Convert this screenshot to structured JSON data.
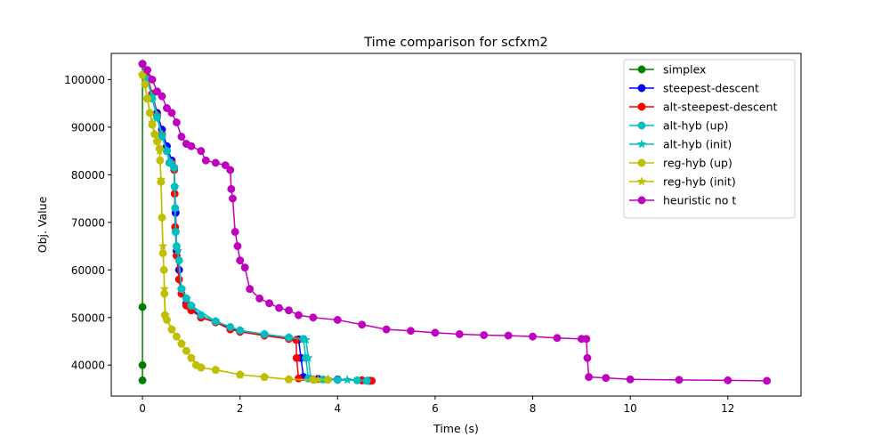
{
  "chart_data": {
    "type": "line",
    "title": "Time comparison for scfxm2",
    "xlabel": "Time (s)",
    "ylabel": "Obj. Value",
    "xlim": [
      -0.64,
      13.5
    ],
    "ylim": [
      33500,
      105500
    ],
    "xticks": [
      0,
      2,
      4,
      6,
      8,
      10,
      12
    ],
    "yticks": [
      40000,
      50000,
      60000,
      70000,
      80000,
      90000,
      100000
    ],
    "grid": false,
    "legend_position": "top-right",
    "series": [
      {
        "name": "simplex",
        "color": "#008000",
        "marker": "circle",
        "points": [
          [
            0.0,
            103300
          ],
          [
            0.0,
            52200
          ],
          [
            0.0,
            40000
          ],
          [
            0.0,
            36800
          ]
        ]
      },
      {
        "name": "steepest-descent",
        "color": "#0000ff",
        "marker": "circle",
        "points": [
          [
            0.0,
            103300
          ],
          [
            0.1,
            100500
          ],
          [
            0.2,
            97000
          ],
          [
            0.3,
            93000
          ],
          [
            0.4,
            89500
          ],
          [
            0.5,
            86000
          ],
          [
            0.6,
            83000
          ],
          [
            0.65,
            81500
          ],
          [
            0.68,
            72000
          ],
          [
            0.7,
            64000
          ],
          [
            0.75,
            60000
          ],
          [
            0.8,
            56000
          ],
          [
            0.9,
            53000
          ],
          [
            1.0,
            52000
          ],
          [
            1.2,
            50000
          ],
          [
            1.5,
            49000
          ],
          [
            2.0,
            47000
          ],
          [
            2.5,
            46300
          ],
          [
            3.0,
            45700
          ],
          [
            3.2,
            45400
          ],
          [
            3.25,
            41500
          ],
          [
            3.3,
            37500
          ],
          [
            3.6,
            37100
          ],
          [
            4.0,
            37000
          ],
          [
            4.5,
            36800
          ],
          [
            4.65,
            36700
          ]
        ]
      },
      {
        "name": "alt-steepest-descent",
        "color": "#ff0000",
        "marker": "circle",
        "points": [
          [
            0.0,
            103300
          ],
          [
            0.1,
            100500
          ],
          [
            0.2,
            97000
          ],
          [
            0.3,
            92500
          ],
          [
            0.4,
            88500
          ],
          [
            0.5,
            85000
          ],
          [
            0.6,
            82500
          ],
          [
            0.65,
            81000
          ],
          [
            0.66,
            76000
          ],
          [
            0.67,
            69000
          ],
          [
            0.7,
            63000
          ],
          [
            0.75,
            58000
          ],
          [
            0.8,
            55000
          ],
          [
            0.9,
            52500
          ],
          [
            1.0,
            51500
          ],
          [
            1.2,
            50000
          ],
          [
            1.5,
            49000
          ],
          [
            1.8,
            47500
          ],
          [
            2.0,
            47000
          ],
          [
            2.5,
            46200
          ],
          [
            3.0,
            45500
          ],
          [
            3.15,
            45300
          ],
          [
            3.16,
            41500
          ],
          [
            3.2,
            37200
          ],
          [
            3.5,
            37000
          ],
          [
            4.0,
            36900
          ],
          [
            4.5,
            36800
          ],
          [
            4.7,
            36700
          ]
        ]
      },
      {
        "name": "alt-hyb (up)",
        "color": "#00bfbf",
        "marker": "circle",
        "points": [
          [
            0.0,
            103300
          ],
          [
            0.1,
            100000
          ],
          [
            0.2,
            96000
          ],
          [
            0.3,
            92000
          ],
          [
            0.4,
            88000
          ],
          [
            0.5,
            85000
          ],
          [
            0.55,
            82500
          ],
          [
            0.65,
            81500
          ],
          [
            0.66,
            77500
          ],
          [
            0.67,
            73000
          ],
          [
            0.68,
            68000
          ],
          [
            0.7,
            65000
          ],
          [
            0.75,
            62000
          ],
          [
            0.8,
            56000
          ],
          [
            0.9,
            54000
          ],
          [
            1.0,
            52500
          ],
          [
            1.2,
            50500
          ],
          [
            1.5,
            49200
          ],
          [
            1.8,
            48000
          ],
          [
            2.0,
            47300
          ],
          [
            2.5,
            46500
          ],
          [
            3.0,
            45800
          ],
          [
            3.3,
            45500
          ],
          [
            3.35,
            41500
          ],
          [
            3.4,
            37200
          ],
          [
            3.7,
            37000
          ],
          [
            4.0,
            36900
          ],
          [
            4.4,
            36800
          ],
          [
            4.6,
            36700
          ]
        ]
      },
      {
        "name": "alt-hyb (init)",
        "color": "#00bfbf",
        "marker": "star",
        "points": [
          [
            0.0,
            103300
          ],
          [
            0.1,
            100000
          ],
          [
            0.2,
            96500
          ],
          [
            0.3,
            92500
          ],
          [
            0.4,
            88500
          ],
          [
            0.5,
            85000
          ],
          [
            0.6,
            82500
          ],
          [
            0.65,
            81500
          ],
          [
            0.66,
            77500
          ],
          [
            0.68,
            68000
          ],
          [
            0.72,
            64000
          ],
          [
            0.8,
            56000
          ],
          [
            0.9,
            54000
          ],
          [
            1.0,
            52500
          ],
          [
            1.5,
            49200
          ],
          [
            2.0,
            47300
          ],
          [
            2.5,
            46500
          ],
          [
            3.0,
            45800
          ],
          [
            3.35,
            45300
          ],
          [
            3.4,
            41500
          ],
          [
            3.45,
            37200
          ],
          [
            3.8,
            37000
          ],
          [
            4.2,
            36900
          ],
          [
            4.6,
            36700
          ]
        ]
      },
      {
        "name": "reg-hyb (up)",
        "color": "#bfbf00",
        "marker": "circle",
        "points": [
          [
            0.0,
            101000
          ],
          [
            0.05,
            99000
          ],
          [
            0.1,
            96000
          ],
          [
            0.15,
            93000
          ],
          [
            0.2,
            90500
          ],
          [
            0.25,
            88500
          ],
          [
            0.3,
            87000
          ],
          [
            0.35,
            85500
          ],
          [
            0.36,
            83000
          ],
          [
            0.38,
            78500
          ],
          [
            0.4,
            71000
          ],
          [
            0.42,
            63500
          ],
          [
            0.44,
            60000
          ],
          [
            0.45,
            55000
          ],
          [
            0.46,
            50500
          ],
          [
            0.5,
            49500
          ],
          [
            0.6,
            47500
          ],
          [
            0.7,
            46000
          ],
          [
            0.8,
            44500
          ],
          [
            0.9,
            43000
          ],
          [
            1.0,
            41500
          ],
          [
            1.1,
            40000
          ],
          [
            1.2,
            39500
          ],
          [
            1.5,
            39000
          ],
          [
            2.0,
            38000
          ],
          [
            2.5,
            37500
          ],
          [
            3.0,
            37000
          ],
          [
            3.5,
            36900
          ],
          [
            3.8,
            36900
          ]
        ]
      },
      {
        "name": "reg-hyb (init)",
        "color": "#bfbf00",
        "marker": "star",
        "points": [
          [
            0.0,
            101000
          ],
          [
            0.1,
            96000
          ],
          [
            0.2,
            91000
          ],
          [
            0.3,
            87000
          ],
          [
            0.35,
            85000
          ],
          [
            0.38,
            79000
          ],
          [
            0.42,
            65000
          ],
          [
            0.45,
            56000
          ],
          [
            0.47,
            50500
          ],
          [
            0.6,
            47500
          ],
          [
            0.8,
            44500
          ],
          [
            1.0,
            41500
          ],
          [
            1.2,
            39500
          ],
          [
            1.5,
            39000
          ],
          [
            2.0,
            38000
          ],
          [
            2.5,
            37500
          ],
          [
            3.0,
            37000
          ],
          [
            3.6,
            36900
          ]
        ]
      },
      {
        "name": "heuristic no t",
        "color": "#bf00bf",
        "marker": "circle",
        "points": [
          [
            0.0,
            103300
          ],
          [
            0.1,
            102000
          ],
          [
            0.2,
            100000
          ],
          [
            0.3,
            97500
          ],
          [
            0.4,
            96500
          ],
          [
            0.5,
            94000
          ],
          [
            0.6,
            93000
          ],
          [
            0.7,
            91000
          ],
          [
            0.8,
            88000
          ],
          [
            0.9,
            86500
          ],
          [
            1.0,
            86000
          ],
          [
            1.2,
            85000
          ],
          [
            1.3,
            83000
          ],
          [
            1.5,
            82500
          ],
          [
            1.7,
            82000
          ],
          [
            1.8,
            81000
          ],
          [
            1.82,
            77000
          ],
          [
            1.85,
            75000
          ],
          [
            1.9,
            68000
          ],
          [
            1.95,
            65000
          ],
          [
            2.0,
            62000
          ],
          [
            2.1,
            60500
          ],
          [
            2.2,
            56000
          ],
          [
            2.4,
            54000
          ],
          [
            2.6,
            53000
          ],
          [
            2.8,
            52000
          ],
          [
            3.0,
            51500
          ],
          [
            3.2,
            50500
          ],
          [
            3.5,
            50000
          ],
          [
            4.0,
            49500
          ],
          [
            4.5,
            48500
          ],
          [
            5.0,
            47500
          ],
          [
            5.5,
            47200
          ],
          [
            6.0,
            46800
          ],
          [
            6.5,
            46500
          ],
          [
            7.0,
            46300
          ],
          [
            7.5,
            46200
          ],
          [
            8.0,
            46000
          ],
          [
            8.5,
            45700
          ],
          [
            9.0,
            45500
          ],
          [
            9.1,
            45500
          ],
          [
            9.12,
            41500
          ],
          [
            9.15,
            37500
          ],
          [
            9.5,
            37300
          ],
          [
            10.0,
            37000
          ],
          [
            11.0,
            36900
          ],
          [
            12.0,
            36800
          ],
          [
            12.8,
            36700
          ]
        ]
      }
    ]
  }
}
